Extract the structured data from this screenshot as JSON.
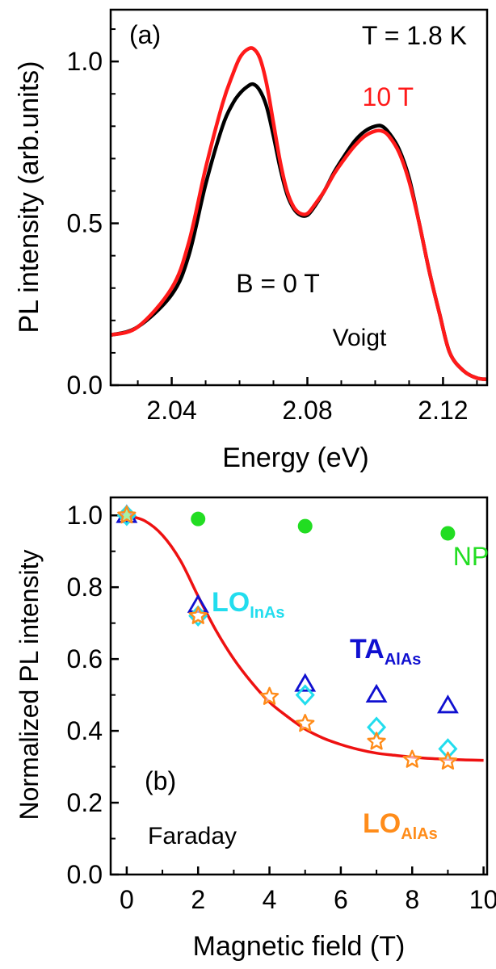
{
  "chart_data": [
    {
      "type": "line",
      "panel_label": "(a)",
      "xlabel": "Energy (eV)",
      "ylabel": "PL intensity (arb.units)",
      "xlim": [
        2.022,
        2.133
      ],
      "ylim": [
        0,
        1.16
      ],
      "x_ticks": [
        2.04,
        2.08,
        2.12
      ],
      "y_ticks": [
        0.0,
        0.5,
        1.0
      ],
      "annotations": {
        "temperature": "T = 1.8 K",
        "field_high": "10 T",
        "field_zero": "B = 0 T",
        "geometry": "Voigt"
      },
      "colors": {
        "b0": "#000000",
        "b10": "#ff1a1a"
      },
      "series": [
        {
          "key": "b0",
          "x": [
            2.022,
            2.03,
            2.04,
            2.045,
            2.05,
            2.055,
            2.058,
            2.06,
            2.062,
            2.064,
            2.066,
            2.068,
            2.07,
            2.072,
            2.074,
            2.076,
            2.078,
            2.08,
            2.082,
            2.085,
            2.088,
            2.091,
            2.094,
            2.097,
            2.1,
            2.102,
            2.104,
            2.107,
            2.11,
            2.113,
            2.116,
            2.119,
            2.122,
            2.126,
            2.13,
            2.133
          ],
          "y": [
            0.155,
            0.18,
            0.28,
            0.4,
            0.62,
            0.8,
            0.87,
            0.9,
            0.92,
            0.93,
            0.91,
            0.86,
            0.77,
            0.67,
            0.59,
            0.545,
            0.525,
            0.525,
            0.55,
            0.6,
            0.66,
            0.71,
            0.755,
            0.785,
            0.8,
            0.8,
            0.78,
            0.73,
            0.64,
            0.5,
            0.35,
            0.22,
            0.1,
            0.045,
            0.022,
            0.018
          ]
        },
        {
          "key": "b10",
          "x": [
            2.022,
            2.03,
            2.04,
            2.045,
            2.05,
            2.055,
            2.058,
            2.06,
            2.062,
            2.064,
            2.066,
            2.068,
            2.07,
            2.072,
            2.074,
            2.076,
            2.078,
            2.08,
            2.082,
            2.085,
            2.088,
            2.091,
            2.094,
            2.097,
            2.1,
            2.102,
            2.104,
            2.107,
            2.11,
            2.113,
            2.116,
            2.119,
            2.122,
            2.126,
            2.13,
            2.133
          ],
          "y": [
            0.155,
            0.18,
            0.3,
            0.44,
            0.67,
            0.87,
            0.96,
            1.01,
            1.035,
            1.04,
            1.01,
            0.93,
            0.81,
            0.69,
            0.6,
            0.55,
            0.53,
            0.53,
            0.555,
            0.6,
            0.655,
            0.7,
            0.74,
            0.77,
            0.785,
            0.785,
            0.77,
            0.72,
            0.63,
            0.5,
            0.35,
            0.22,
            0.1,
            0.045,
            0.022,
            0.018
          ]
        }
      ]
    },
    {
      "type": "scatter",
      "panel_label": "(b)",
      "xlabel": "Magnetic field (T)",
      "ylabel": "Normalized PL intensity",
      "xlim": [
        -0.45,
        10.1
      ],
      "ylim": [
        0,
        1.05
      ],
      "x_ticks": [
        0,
        2,
        4,
        6,
        8,
        10
      ],
      "y_ticks": [
        0.0,
        0.2,
        0.4,
        0.6,
        0.8,
        1.0
      ],
      "annotations": {
        "geometry": "Faraday"
      },
      "series": [
        {
          "key": "np",
          "label": "NP",
          "marker": "circle",
          "color": "#22dd22",
          "x": [
            0,
            2,
            5,
            9
          ],
          "y": [
            1.0,
            0.99,
            0.97,
            0.95
          ]
        },
        {
          "key": "ta",
          "label_main": "TA",
          "label_sub": "AlAs",
          "marker": "triangle",
          "color": "#1010d0",
          "x": [
            0,
            2,
            5,
            7,
            9
          ],
          "y": [
            1.0,
            0.75,
            0.53,
            0.5,
            0.47
          ]
        },
        {
          "key": "lo_inas",
          "label_main": "LO",
          "label_sub": "InAs",
          "marker": "diamond",
          "color": "#22ddee",
          "x": [
            0,
            2,
            5,
            7,
            9
          ],
          "y": [
            1.0,
            0.72,
            0.5,
            0.41,
            0.35
          ]
        },
        {
          "key": "lo_alas",
          "label_main": "LO",
          "label_sub": "AlAs",
          "marker": "star",
          "color": "#ff8c1a",
          "x": [
            0,
            2,
            4,
            5,
            7,
            8,
            9
          ],
          "y": [
            1.0,
            0.72,
            0.495,
            0.42,
            0.37,
            0.32,
            0.315
          ]
        },
        {
          "key": "fit",
          "marker": "none",
          "color": "#ee1111",
          "x": [
            0,
            0.5,
            1,
            1.5,
            2,
            2.5,
            3,
            3.5,
            4,
            4.5,
            5,
            5.5,
            6,
            6.5,
            7,
            7.5,
            8,
            8.5,
            9,
            9.5,
            10
          ],
          "y": [
            1.0,
            0.985,
            0.945,
            0.875,
            0.775,
            0.68,
            0.6,
            0.535,
            0.48,
            0.44,
            0.405,
            0.38,
            0.362,
            0.348,
            0.338,
            0.332,
            0.327,
            0.323,
            0.321,
            0.319,
            0.318
          ]
        }
      ]
    }
  ]
}
